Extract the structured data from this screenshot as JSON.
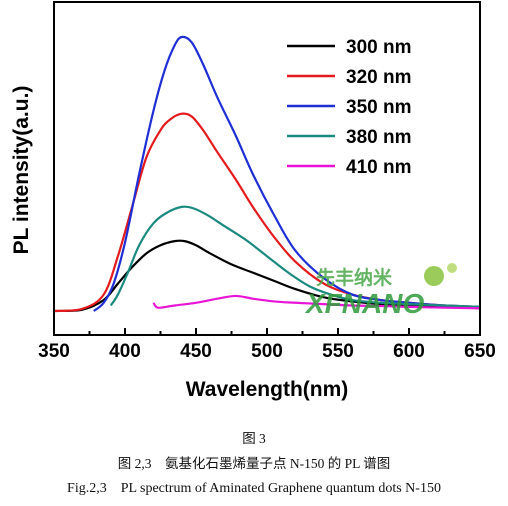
{
  "chart_data": {
    "type": "line",
    "title": "",
    "xlabel": "Wavelength(nm)",
    "ylabel": "PL intensity(a.u.)",
    "xlim": [
      350,
      650
    ],
    "ylim": [
      0,
      1.0
    ],
    "x_ticks": [
      350,
      400,
      450,
      500,
      550,
      600,
      650
    ],
    "y_ticks_visible": false,
    "grid": false,
    "legend_position": "top-right",
    "series": [
      {
        "name": "300 nm",
        "color": "#000000",
        "points": [
          [
            350,
            0.0
          ],
          [
            370,
            0.005
          ],
          [
            385,
            0.04
          ],
          [
            395,
            0.1
          ],
          [
            405,
            0.16
          ],
          [
            415,
            0.21
          ],
          [
            425,
            0.24
          ],
          [
            435,
            0.255
          ],
          [
            442,
            0.255
          ],
          [
            450,
            0.24
          ],
          [
            460,
            0.21
          ],
          [
            475,
            0.17
          ],
          [
            490,
            0.14
          ],
          [
            505,
            0.11
          ],
          [
            520,
            0.08
          ],
          [
            540,
            0.05
          ],
          [
            560,
            0.035
          ],
          [
            580,
            0.025
          ],
          [
            600,
            0.02
          ],
          [
            620,
            0.015
          ],
          [
            640,
            0.012
          ],
          [
            650,
            0.01
          ]
        ]
      },
      {
        "name": "320 nm",
        "color": "#e41a1c",
        "points": [
          [
            350,
            0.0
          ],
          [
            370,
            0.008
          ],
          [
            385,
            0.06
          ],
          [
            395,
            0.2
          ],
          [
            405,
            0.38
          ],
          [
            415,
            0.56
          ],
          [
            425,
            0.66
          ],
          [
            432,
            0.7
          ],
          [
            440,
            0.72
          ],
          [
            447,
            0.71
          ],
          [
            455,
            0.66
          ],
          [
            465,
            0.58
          ],
          [
            478,
            0.48
          ],
          [
            490,
            0.38
          ],
          [
            505,
            0.27
          ],
          [
            520,
            0.18
          ],
          [
            540,
            0.1
          ],
          [
            560,
            0.06
          ],
          [
            580,
            0.04
          ],
          [
            600,
            0.03
          ],
          [
            625,
            0.02
          ],
          [
            650,
            0.015
          ]
        ]
      },
      {
        "name": "350 nm",
        "color": "#1f2fd6",
        "points": [
          [
            378,
            0.0
          ],
          [
            385,
            0.03
          ],
          [
            392,
            0.1
          ],
          [
            400,
            0.25
          ],
          [
            410,
            0.5
          ],
          [
            420,
            0.73
          ],
          [
            428,
            0.88
          ],
          [
            435,
            0.97
          ],
          [
            440,
            1.0
          ],
          [
            447,
            0.98
          ],
          [
            455,
            0.9
          ],
          [
            465,
            0.78
          ],
          [
            478,
            0.64
          ],
          [
            490,
            0.5
          ],
          [
            505,
            0.35
          ],
          [
            520,
            0.22
          ],
          [
            540,
            0.12
          ],
          [
            560,
            0.06
          ],
          [
            580,
            0.04
          ],
          [
            600,
            0.03
          ],
          [
            625,
            0.02
          ],
          [
            650,
            0.015
          ]
        ]
      },
      {
        "name": "380 nm",
        "color": "#1b8a7e",
        "points": [
          [
            390,
            0.02
          ],
          [
            395,
            0.06
          ],
          [
            402,
            0.14
          ],
          [
            410,
            0.24
          ],
          [
            420,
            0.32
          ],
          [
            430,
            0.36
          ],
          [
            440,
            0.38
          ],
          [
            448,
            0.375
          ],
          [
            458,
            0.35
          ],
          [
            470,
            0.31
          ],
          [
            485,
            0.26
          ],
          [
            500,
            0.2
          ],
          [
            515,
            0.14
          ],
          [
            530,
            0.09
          ],
          [
            545,
            0.06
          ],
          [
            560,
            0.04
          ],
          [
            580,
            0.03
          ],
          [
            600,
            0.025
          ],
          [
            625,
            0.02
          ],
          [
            650,
            0.015
          ]
        ]
      },
      {
        "name": "410 nm",
        "color": "#e815d8",
        "points": [
          [
            420,
            0.03
          ],
          [
            422,
            0.015
          ],
          [
            425,
            0.012
          ],
          [
            435,
            0.02
          ],
          [
            450,
            0.03
          ],
          [
            465,
            0.045
          ],
          [
            478,
            0.055
          ],
          [
            490,
            0.045
          ],
          [
            505,
            0.035
          ],
          [
            520,
            0.03
          ],
          [
            540,
            0.025
          ],
          [
            560,
            0.02
          ],
          [
            580,
            0.018
          ],
          [
            600,
            0.015
          ],
          [
            625,
            0.012
          ],
          [
            650,
            0.01
          ]
        ]
      }
    ]
  },
  "watermark": {
    "chinese": "先丰纳米",
    "latin": "XFNANO",
    "color": "#2f9b3a"
  },
  "captions": {
    "figure_number": "图 3",
    "chinese_caption": "图 2,3　氨基化石墨烯量子点 N-150 的 PL 谱图",
    "english_caption": "Fig.2,3　PL spectrum of Aminated Graphene quantum dots N-150"
  }
}
